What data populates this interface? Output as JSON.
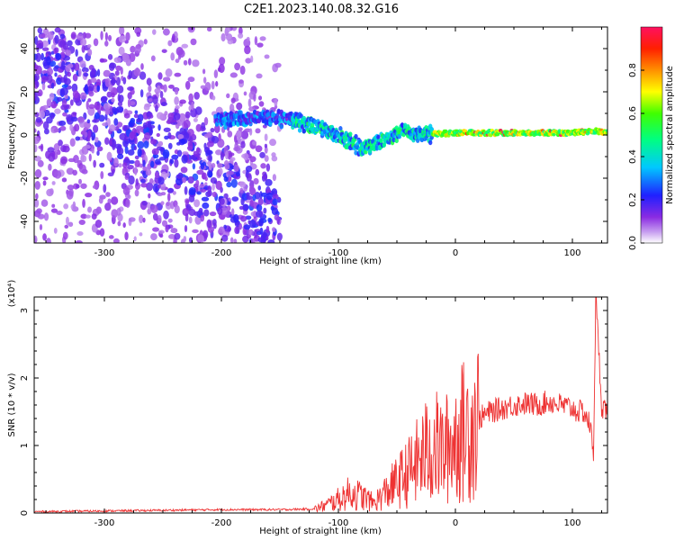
{
  "title": "C2E1.2023.140.08.32.G16",
  "chart_data": [
    {
      "type": "heatmap",
      "name": "spectrogram",
      "xlabel": "Height of straight line (km)",
      "ylabel": "Frequency (Hz)",
      "xlim": [
        -360,
        130
      ],
      "ylim": [
        -50,
        50
      ],
      "xticks": [
        -300,
        -200,
        -100,
        0,
        100
      ],
      "yticks": [
        -40,
        -20,
        0,
        20,
        40
      ],
      "colorbar": {
        "label": "Normalized spectral amplitude",
        "range": [
          0.0,
          1.0
        ],
        "ticks": [
          0.0,
          0.2,
          0.4,
          0.6,
          0.8
        ],
        "tick_labels": [
          "0.0",
          "0.2",
          "0.4",
          "0.6",
          "0.8"
        ],
        "colormap": "rainbow"
      },
      "features": {
        "ridge": [
          [
            -200,
            7
          ],
          [
            -170,
            8
          ],
          [
            -140,
            7
          ],
          [
            -120,
            4
          ],
          [
            -100,
            0
          ],
          [
            -80,
            -6
          ],
          [
            -60,
            -2
          ],
          [
            -45,
            2
          ],
          [
            -30,
            0
          ],
          [
            0,
            1
          ],
          [
            50,
            1
          ],
          [
            100,
            1
          ],
          [
            120,
            2
          ],
          [
            130,
            1
          ]
        ],
        "diffuse_region_x": [
          -360,
          -150
        ]
      }
    },
    {
      "type": "line",
      "name": "snr",
      "xlabel": "Height of straight line (km)",
      "ylabel": "SNR (10 * v/v)",
      "ylabel_scale": "(x10⁴)",
      "xlim": [
        -360,
        130
      ],
      "ylim": [
        0,
        3.2
      ],
      "xticks": [
        -300,
        -200,
        -100,
        0,
        100
      ],
      "yticks": [
        0,
        1,
        2,
        3
      ],
      "series": [
        {
          "color": "#ee3333",
          "x": [
            -360,
            -300,
            -250,
            -200,
            -150,
            -120,
            -110,
            -100,
            -90,
            -80,
            -70,
            -60,
            -50,
            -40,
            -30,
            -20,
            -10,
            0,
            10,
            20,
            30,
            40,
            50,
            60,
            70,
            80,
            90,
            100,
            105,
            110,
            115,
            118,
            120,
            125,
            130
          ],
          "y": [
            0.02,
            0.03,
            0.04,
            0.05,
            0.05,
            0.06,
            0.12,
            0.2,
            0.3,
            0.25,
            0.15,
            0.3,
            0.45,
            0.6,
            0.8,
            1.0,
            0.9,
            1.1,
            1.25,
            1.4,
            1.5,
            1.55,
            1.6,
            1.62,
            1.6,
            1.65,
            1.6,
            1.55,
            1.5,
            1.5,
            1.3,
            0.9,
            3.2,
            1.6,
            1.5
          ]
        }
      ]
    }
  ]
}
